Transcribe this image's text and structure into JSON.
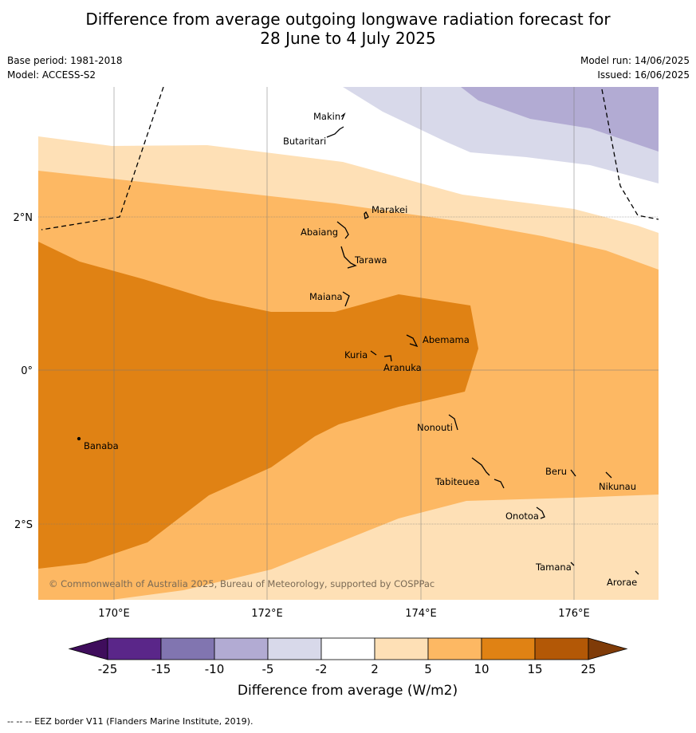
{
  "header": {
    "title_line1": "Difference from average outgoing longwave radiation forecast for",
    "title_line2": "28 June to 4 July 2025",
    "base_period": "Base period: 1981-2018",
    "model": "Model: ACCESS-S2",
    "model_run": "Model run: 14/06/2025",
    "issued": "Issued: 16/06/2025"
  },
  "map": {
    "lon_ticks": [
      "170°E",
      "172°E",
      "174°E",
      "176°E"
    ],
    "lat_ticks": [
      "2°N",
      "0°",
      "2°S"
    ],
    "copyright": "© Commonwealth of Australia 2025, Bureau of Meteorology, supported by COSPPac",
    "islands": [
      {
        "name": "Makin"
      },
      {
        "name": "Butaritari"
      },
      {
        "name": "Marakei"
      },
      {
        "name": "Abaiang"
      },
      {
        "name": "Tarawa"
      },
      {
        "name": "Maiana"
      },
      {
        "name": "Abemama"
      },
      {
        "name": "Kuria"
      },
      {
        "name": "Aranuka"
      },
      {
        "name": "Banaba"
      },
      {
        "name": "Nonouti"
      },
      {
        "name": "Tabiteuea"
      },
      {
        "name": "Beru"
      },
      {
        "name": "Nikunau"
      },
      {
        "name": "Onotoa"
      },
      {
        "name": "Tamana"
      },
      {
        "name": "Arorae"
      }
    ]
  },
  "colorbar": {
    "label": "Difference from average (W/m2)",
    "ticks": [
      "-25",
      "-15",
      "-10",
      "-5",
      "-2",
      "2",
      "5",
      "10",
      "15",
      "25"
    ],
    "colors": {
      "below_min": "#3f0d5c",
      "bins": [
        "#5a2689",
        "#8175b0",
        "#b2abd3",
        "#d8d9ea",
        "#ffffff",
        "#fee0b6",
        "#fdb863",
        "#e08214",
        "#b35806"
      ],
      "above_max": "#7f3b08"
    }
  },
  "footer": {
    "eez_note": "--  --  -- EEZ border V11 (Flanders Marine Institute, 2019)."
  }
}
